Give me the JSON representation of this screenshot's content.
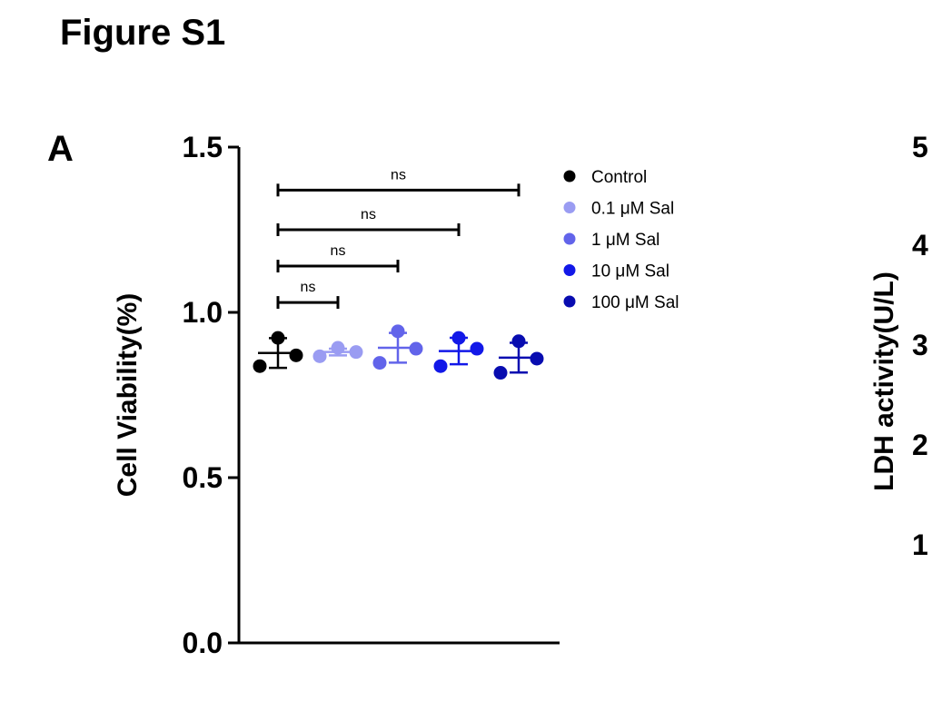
{
  "figure_title": "Figure S1",
  "panel_label": "A",
  "chart_data": [
    {
      "type": "scatter",
      "ylabel": "Cell Viability(%)",
      "ylim": [
        0,
        1.5
      ],
      "yticks": [
        0.0,
        0.5,
        1.0,
        1.5
      ],
      "ytick_labels": [
        "0.0",
        "0.5",
        "1.0",
        "1.5"
      ],
      "grid": false,
      "legend_position": "top-right",
      "series": [
        {
          "name": "Control",
          "color": "#000000",
          "points": [
            0.92,
            0.84,
            0.87
          ],
          "mean": 0.877,
          "sd": 0.045
        },
        {
          "name": "0.1 μM Sal",
          "color": "#9a9cf2",
          "points": [
            0.89,
            0.87,
            0.88
          ],
          "mean": 0.88,
          "sd": 0.01
        },
        {
          "name": "1 μM Sal",
          "color": "#6264ea",
          "points": [
            0.94,
            0.85,
            0.89
          ],
          "mean": 0.893,
          "sd": 0.045
        },
        {
          "name": "10 μM Sal",
          "color": "#1218e8",
          "points": [
            0.92,
            0.84,
            0.89
          ],
          "mean": 0.883,
          "sd": 0.04
        },
        {
          "name": "100 μM Sal",
          "color": "#080cb0",
          "points": [
            0.91,
            0.82,
            0.86
          ],
          "mean": 0.863,
          "sd": 0.045
        }
      ],
      "comparisons": [
        {
          "from": 0,
          "to": 4,
          "label": "ns",
          "y": 1.37
        },
        {
          "from": 0,
          "to": 3,
          "label": "ns",
          "y": 1.25
        },
        {
          "from": 0,
          "to": 2,
          "label": "ns",
          "y": 1.14
        },
        {
          "from": 0,
          "to": 1,
          "label": "ns",
          "y": 1.03
        }
      ]
    },
    {
      "type": "scatter",
      "ylabel": "LDH activity(U/L)",
      "ytick_labels": [
        "1",
        "2",
        "3",
        "4",
        "5"
      ],
      "partial": true
    }
  ]
}
